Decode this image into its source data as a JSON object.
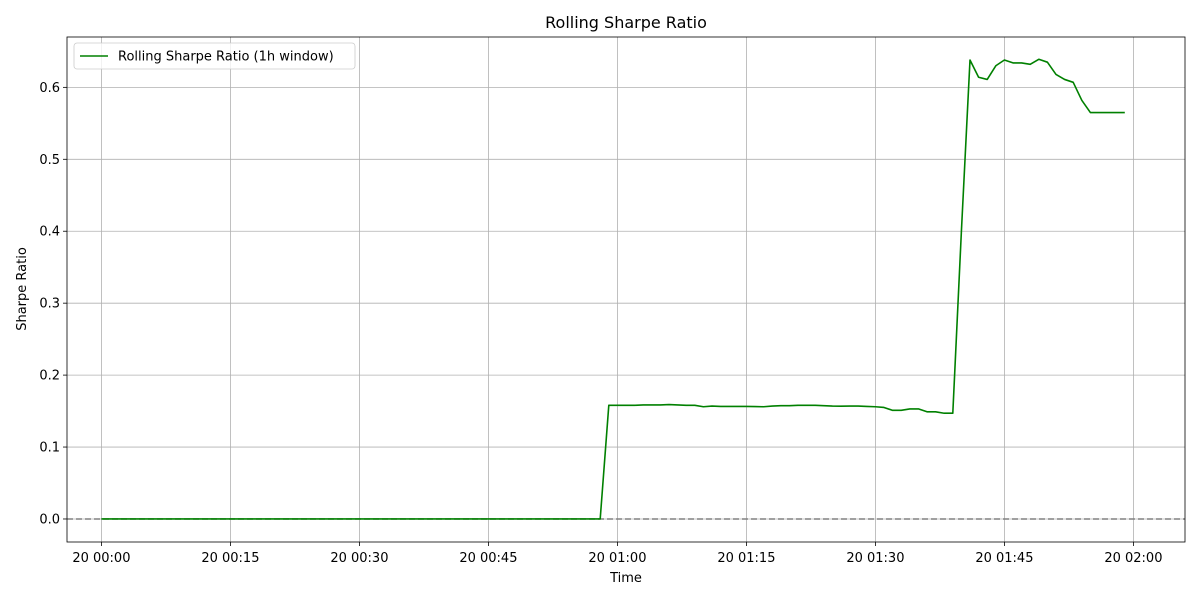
{
  "chart_data": {
    "type": "line",
    "title": "Rolling Sharpe Ratio",
    "xlabel": "Time",
    "ylabel": "Sharpe Ratio",
    "x_unit": "minutes past 20 00:00",
    "xlim": [
      -4,
      126
    ],
    "ylim": [
      -0.032,
      0.67
    ],
    "x_ticks": [
      {
        "value": 0,
        "label": "20 00:00"
      },
      {
        "value": 15,
        "label": "20 00:15"
      },
      {
        "value": 30,
        "label": "20 00:30"
      },
      {
        "value": 45,
        "label": "20 00:45"
      },
      {
        "value": 60,
        "label": "20 01:00"
      },
      {
        "value": 75,
        "label": "20 01:15"
      },
      {
        "value": 90,
        "label": "20 01:30"
      },
      {
        "value": 105,
        "label": "20 01:45"
      },
      {
        "value": 120,
        "label": "20 02:00"
      }
    ],
    "y_ticks": [
      {
        "value": 0.0,
        "label": "0.0"
      },
      {
        "value": 0.1,
        "label": "0.1"
      },
      {
        "value": 0.2,
        "label": "0.2"
      },
      {
        "value": 0.3,
        "label": "0.3"
      },
      {
        "value": 0.4,
        "label": "0.4"
      },
      {
        "value": 0.5,
        "label": "0.5"
      },
      {
        "value": 0.6,
        "label": "0.6"
      }
    ],
    "grid": true,
    "legend": {
      "placement": "top-left"
    },
    "reference_line": {
      "y": 0,
      "style": "dashed",
      "color": "#808080"
    },
    "series": [
      {
        "name": "Rolling Sharpe Ratio (1h window)",
        "color": "#008000",
        "x": [
          0,
          58,
          59,
          60,
          61,
          62,
          63,
          64,
          65,
          66,
          67,
          68,
          69,
          70,
          71,
          72,
          73,
          74,
          75,
          76,
          77,
          78,
          79,
          80,
          81,
          82,
          83,
          84,
          85,
          86,
          87,
          88,
          89,
          90,
          91,
          92,
          93,
          94,
          95,
          96,
          97,
          98,
          99,
          100,
          101,
          102,
          103,
          104,
          105,
          106,
          107,
          108,
          109,
          110,
          111,
          112,
          113,
          114,
          115,
          116,
          117,
          118,
          119
        ],
        "y": [
          0,
          0,
          0.158,
          0.158,
          0.158,
          0.158,
          0.1585,
          0.1585,
          0.1585,
          0.159,
          0.1585,
          0.158,
          0.158,
          0.156,
          0.157,
          0.1565,
          0.1565,
          0.1565,
          0.1565,
          0.1562,
          0.156,
          0.157,
          0.1575,
          0.1575,
          0.158,
          0.158,
          0.158,
          0.1575,
          0.157,
          0.1568,
          0.157,
          0.157,
          0.1565,
          0.156,
          0.155,
          0.151,
          0.151,
          0.153,
          0.153,
          0.149,
          0.149,
          0.147,
          0.147,
          0.4,
          0.638,
          0.614,
          0.611,
          0.63,
          0.638,
          0.634,
          0.634,
          0.632,
          0.639,
          0.635,
          0.618,
          0.611,
          0.607,
          0.582,
          0.565,
          0.565,
          0.565,
          0.565,
          0.565
        ]
      }
    ]
  }
}
